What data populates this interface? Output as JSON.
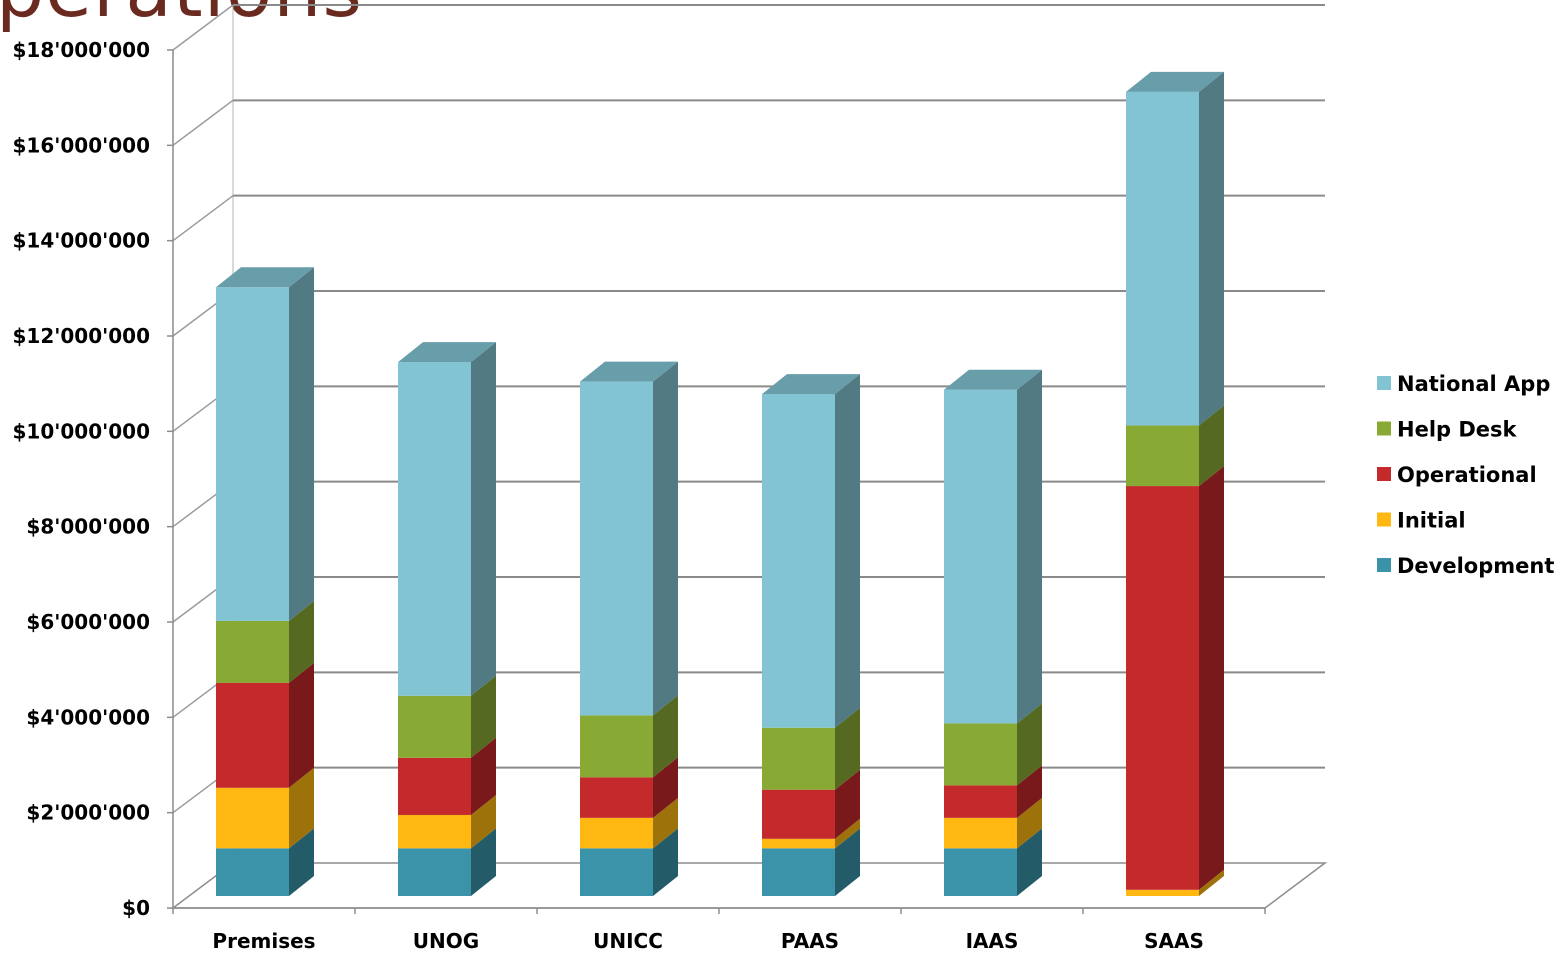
{
  "title_fragment": "perations",
  "chart_data": {
    "type": "bar",
    "stacked": true,
    "three_d": true,
    "categories": [
      "Premises",
      "UNOG",
      "UNICC",
      "PAAS",
      "IAAS",
      "SAAS"
    ],
    "series": [
      {
        "name": "Development",
        "color": "#3a93a9",
        "values": [
          1000000,
          1000000,
          1000000,
          1000000,
          1000000,
          0
        ]
      },
      {
        "name": "Initial",
        "color": "#ffb812",
        "values": [
          1270000,
          700000,
          640000,
          200000,
          640000,
          130000
        ]
      },
      {
        "name": "Operational",
        "color": "#c4292c",
        "values": [
          2200000,
          1200000,
          850000,
          1030000,
          680000,
          8470000
        ]
      },
      {
        "name": "Help Desk",
        "color": "#89a935",
        "values": [
          1300000,
          1300000,
          1300000,
          1300000,
          1300000,
          1270000
        ]
      },
      {
        "name": "National App",
        "color": "#82c4d4",
        "values": [
          7000000,
          7000000,
          7000000,
          7000000,
          7000000,
          7000000
        ]
      }
    ],
    "ylim": [
      0,
      18000000
    ],
    "yticks": [
      0,
      2000000,
      4000000,
      6000000,
      8000000,
      10000000,
      12000000,
      14000000,
      16000000,
      18000000
    ],
    "ytick_labels": [
      "$0",
      "$2'000'000",
      "$4'000'000",
      "$6'000'000",
      "$8'000'000",
      "$10'000'000",
      "$12'000'000",
      "$14'000'000",
      "$16'000'000",
      "$18'000'000"
    ],
    "legend_order": [
      "National App",
      "Help Desk",
      "Operational",
      "Initial",
      "Development"
    ],
    "legend_position": "right",
    "grid": true
  }
}
